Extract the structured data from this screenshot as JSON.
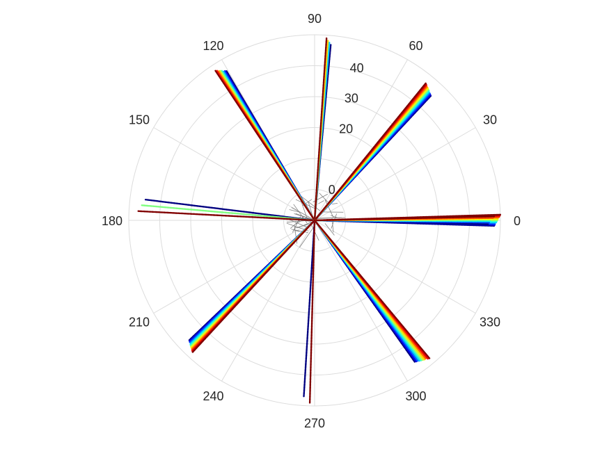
{
  "chart_data": {
    "type": "scatter",
    "subtype": "polar",
    "title": "",
    "theta_unit": "degrees",
    "theta_ticks": [
      "0",
      "30",
      "60",
      "90",
      "120",
      "150",
      "180",
      "210",
      "240",
      "270",
      "300",
      "330"
    ],
    "theta_tick_values": [
      0,
      30,
      60,
      90,
      120,
      150,
      180,
      210,
      240,
      270,
      300,
      330
    ],
    "r_ticks": [
      "0",
      "20",
      "30",
      "40"
    ],
    "r_tick_values": [
      0,
      20,
      30,
      40
    ],
    "rlim": [
      -10,
      50
    ],
    "r_tick_angle_deg": 80,
    "grid": true,
    "colormap": "jet",
    "center_segments": {
      "color": "#808080",
      "r_inner": -10,
      "r_outer": 0
    },
    "bundles": [
      {
        "theta_center": 0,
        "spread_deg": 3.5,
        "count": 14,
        "r_start": -10,
        "r_end": 50
      },
      {
        "theta_center": 0,
        "spread_deg": 2.5,
        "count": 6,
        "r_start": -10,
        "r_end": 48
      },
      {
        "theta_center": 49,
        "spread_deg": 4,
        "count": 14,
        "r_start": -10,
        "r_end": 47
      },
      {
        "theta_center": 85.5,
        "spread_deg": 1.5,
        "count": 4,
        "r_start": -10,
        "r_end": 49
      },
      {
        "theta_center": 122,
        "spread_deg": 3,
        "count": 8,
        "r_start": -10,
        "r_end": 48
      },
      {
        "theta_center": 175,
        "spread_deg": 4,
        "count": 3,
        "r_start": -10,
        "r_end": 47
      },
      {
        "theta_center": 225.5,
        "spread_deg": 3.5,
        "count": 12,
        "r_start": -10,
        "r_end": 48
      },
      {
        "theta_center": 267.5,
        "spread_deg": 2,
        "count": 2,
        "r_start": -10,
        "r_end": 49
      },
      {
        "theta_center": 307.5,
        "spread_deg": 4.5,
        "count": 10,
        "r_start": -10,
        "r_end": 48
      }
    ]
  }
}
